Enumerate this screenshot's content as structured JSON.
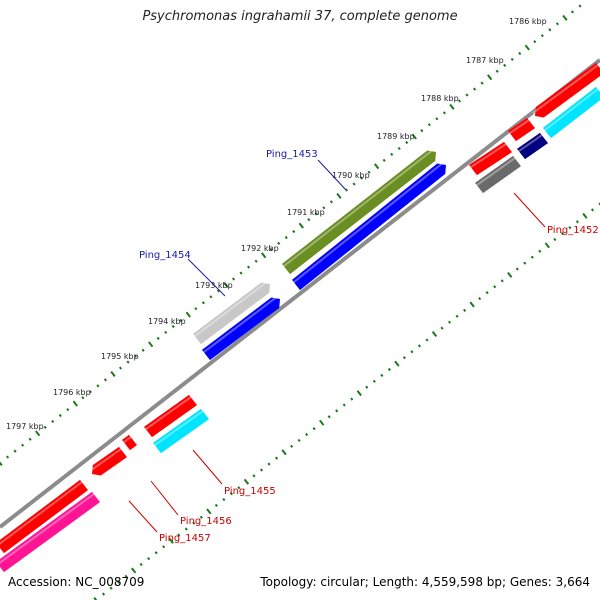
{
  "title": "Psychromonas ingrahamii 37, complete genome",
  "footer": {
    "accession": "Accession: NC_008709",
    "topology": "Topology: circular; Length: 4,559,598 bp; Genes: 3,664"
  },
  "ticks": [
    "1786 kbp",
    "1787 kbp",
    "1788 kbp",
    "1789 kbp",
    "1790 kbp",
    "1791 kbp",
    "1792 kbp",
    "1793 kbp",
    "1794 kbp",
    "1795 kbp",
    "1796 kbp",
    "1797 kbp"
  ],
  "gene_labels": {
    "ping_1453": "Ping_1453",
    "ping_1454": "Ping_1454",
    "ping_1452": "Ping_1452",
    "ping_1455": "Ping_1455",
    "ping_1456": "Ping_1456",
    "ping_1457": "Ping_1457"
  },
  "colors": {
    "backbone": "#8c8c8c",
    "ticks": "#1a7a1a",
    "label_blue": "#1a1aa6",
    "label_red": "#cc0000",
    "red": "#ff0000",
    "olive": "#6b8e23",
    "blue": "#0000ff",
    "lightgray": "#c8c8c8",
    "darkgray": "#6a6a6a",
    "navy": "#000080",
    "cyan": "#00e5ff",
    "magenta": "#ff1493"
  }
}
